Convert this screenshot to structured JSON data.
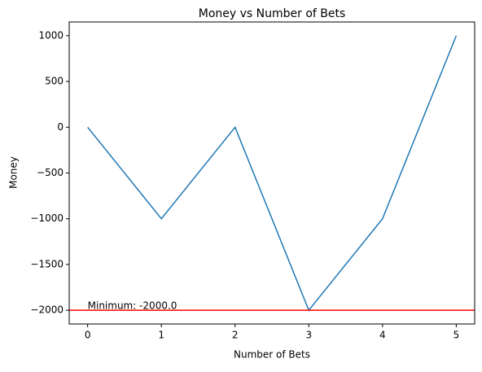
{
  "chart_data": {
    "type": "line",
    "title": "Money vs Number of Bets",
    "xlabel": "Number of Bets",
    "ylabel": "Money",
    "x": [
      0,
      1,
      2,
      3,
      4,
      5
    ],
    "series": [
      {
        "name": "Money",
        "color": "#1f77b4",
        "values": [
          0,
          -1000,
          0,
          -2000,
          -1000,
          1000
        ]
      }
    ],
    "xlim": [
      -0.25,
      5.25
    ],
    "xticks": [
      0,
      1,
      2,
      3,
      4,
      5
    ],
    "ylim": [
      -2150,
      1150
    ],
    "yticks": [
      {
        "value": -2000,
        "label": "−2000"
      },
      {
        "value": -1500,
        "label": "−1500"
      },
      {
        "value": -1000,
        "label": "−1000"
      },
      {
        "value": -500,
        "label": "−500"
      },
      0,
      500,
      1000
    ],
    "hline": {
      "value": -2000,
      "color": "#ff0000"
    },
    "annotation": {
      "text": "Minimum: -2000.0",
      "x": 0,
      "y": -2000
    }
  }
}
